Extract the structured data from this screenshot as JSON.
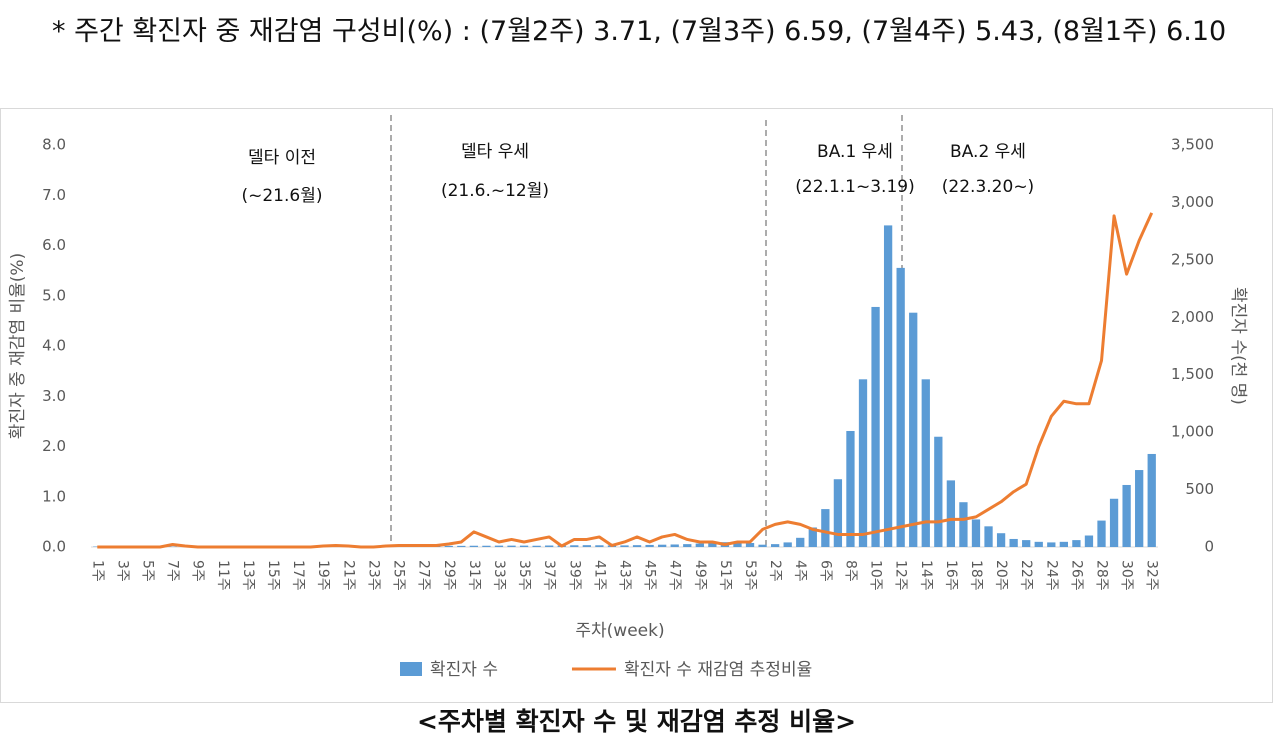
{
  "note": "* 주간 확진자 중 재감염 구성비(%) : (7월2주) 3.71, (7월3주) 6.59, (7월4주) 5.43, (8월1주) 6.10",
  "caption": "<주차별 확진자 수 및 재감염 추정 비율>",
  "chart_data": {
    "type": "bar_line",
    "annotations": [
      "델타 이전",
      "(~21.6월)",
      "델타 우세",
      "(21.6.~12월)",
      "BA.1 우세",
      "(22.1.1~3.19)",
      "BA.2 우세",
      "(22.3.20~)"
    ],
    "x_label": "주차(week)",
    "y_label": "확진자 중 재감염 비율(%)",
    "y2_label": "확진자 수(천 명)",
    "categories": [
      "1주",
      null,
      "3주",
      null,
      "5주",
      null,
      "7주",
      null,
      "9주",
      null,
      "11주",
      null,
      "13주",
      null,
      "15주",
      null,
      "17주",
      null,
      "19주",
      null,
      "21주",
      null,
      "23주",
      null,
      "25주",
      null,
      "27주",
      null,
      "29주",
      null,
      "31주",
      null,
      "33주",
      null,
      "35주",
      null,
      "37주",
      null,
      "39주",
      null,
      "41주",
      null,
      "43주",
      null,
      "45주",
      null,
      "47주",
      null,
      "49주",
      null,
      "51주",
      null,
      "53주",
      null,
      "2주",
      null,
      "4주",
      null,
      "6주",
      null,
      "8주",
      null,
      "10주",
      null,
      "12주",
      null,
      "14주",
      null,
      "16주",
      null,
      "18주",
      null,
      "20주",
      null,
      "22주",
      null,
      "24주",
      null,
      "26주",
      null,
      "28주",
      null,
      "30주",
      null,
      "32주"
    ],
    "series": [
      {
        "name": "확진자 수",
        "color": "#5b9bd5",
        "kind": "bar",
        "axis": "y2",
        "values": [
          4,
          3,
          3,
          3,
          3,
          3,
          3,
          3,
          3,
          3,
          3,
          3,
          3,
          3,
          4,
          4,
          5,
          4,
          4,
          4,
          4,
          4,
          4,
          4,
          5,
          6,
          7,
          8,
          10,
          10,
          11,
          11,
          12,
          12,
          12,
          11,
          13,
          13,
          15,
          16,
          15,
          14,
          14,
          16,
          18,
          20,
          22,
          25,
          30,
          35,
          42,
          40,
          35,
          20,
          25,
          40,
          80,
          170,
          330,
          590,
          1010,
          1460,
          2090,
          2800,
          2430,
          2040,
          1460,
          960,
          580,
          390,
          240,
          180,
          120,
          70,
          60,
          45,
          40,
          45,
          60,
          100,
          230,
          420,
          540,
          670,
          810
        ]
      },
      {
        "name": "확진자 수 재감염 추정비율",
        "color": "#ed7d31",
        "kind": "line",
        "axis": "y",
        "values": [
          0,
          0,
          0,
          0,
          0,
          0,
          0.05,
          0.02,
          0,
          0,
          0,
          0,
          0,
          0,
          0,
          0,
          0,
          0,
          0.02,
          0.03,
          0.02,
          0,
          0,
          0.02,
          0.03,
          0.03,
          0.03,
          0.03,
          0.06,
          0.1,
          0.3,
          0.2,
          0.1,
          0.15,
          0.1,
          0.15,
          0.2,
          0.02,
          0.15,
          0.15,
          0.2,
          0.03,
          0.1,
          0.2,
          0.1,
          0.2,
          0.25,
          0.15,
          0.1,
          0.1,
          0.05,
          0.1,
          0.1,
          0.35,
          0.45,
          0.5,
          0.45,
          0.35,
          0.3,
          0.25,
          0.25,
          0.25,
          0.3,
          0.35,
          0.4,
          0.45,
          0.5,
          0.5,
          0.55,
          0.55,
          0.6,
          0.75,
          0.9,
          1.1,
          1.25,
          2.0,
          2.6,
          2.9,
          2.85,
          2.85,
          3.71,
          6.59,
          5.43,
          6.1,
          6.65
        ]
      }
    ],
    "ylim": [
      0,
      8
    ],
    "yticks": [
      {
        "value": 0,
        "label": "0.0"
      },
      {
        "value": 1,
        "label": "1.0"
      },
      {
        "value": 2,
        "label": "2.0"
      },
      {
        "value": 3,
        "label": "3.0"
      },
      {
        "value": 4,
        "label": "4.0"
      },
      {
        "value": 5,
        "label": "5.0"
      },
      {
        "value": 6,
        "label": "6.0"
      },
      {
        "value": 7,
        "label": "7.0"
      },
      {
        "value": 8,
        "label": "8.0"
      }
    ],
    "y2lim": [
      0,
      3500
    ],
    "y2ticks": [
      0,
      500,
      {
        "value": 1000,
        "label": "1,000"
      },
      {
        "value": 1500,
        "label": "1,500"
      },
      {
        "value": 2000,
        "label": "2,000"
      },
      {
        "value": 2500,
        "label": "2,500"
      },
      {
        "value": 3000,
        "label": "3,000"
      },
      {
        "value": 3500,
        "label": "3,500"
      }
    ],
    "grid": false,
    "legend": "bottom"
  }
}
